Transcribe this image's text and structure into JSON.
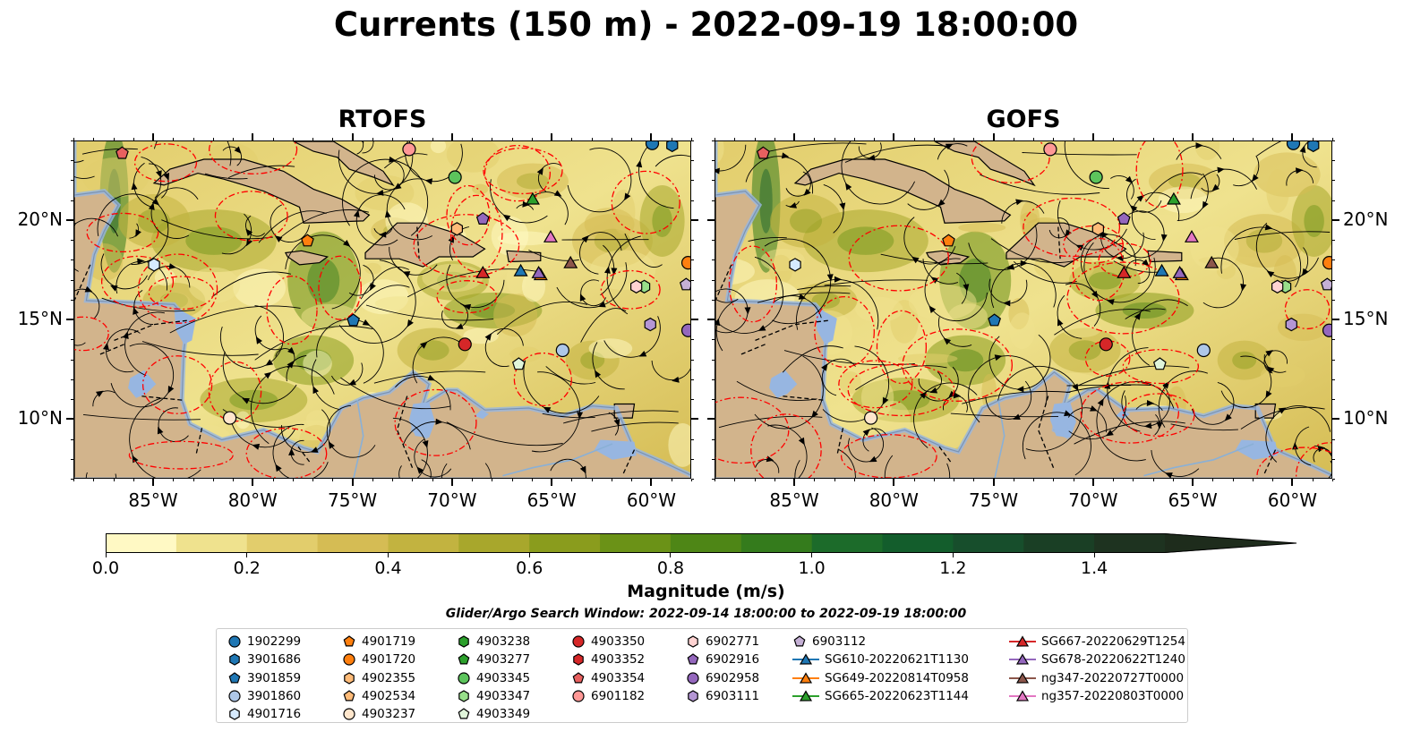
{
  "title": "Currents (150 m) - 2022-09-19 18:00:00",
  "panels": [
    {
      "id": "rtofs",
      "title": "RTOFS"
    },
    {
      "id": "gofs",
      "title": "GOFS"
    }
  ],
  "map_extent": {
    "lon": [
      -89,
      -58
    ],
    "lat": [
      7,
      24
    ]
  },
  "lon_ticks": [
    {
      "value": -85,
      "label": "85°W"
    },
    {
      "value": -80,
      "label": "80°W"
    },
    {
      "value": -75,
      "label": "75°W"
    },
    {
      "value": -70,
      "label": "70°W"
    },
    {
      "value": -65,
      "label": "65°W"
    },
    {
      "value": -60,
      "label": "60°W"
    }
  ],
  "lat_ticks": [
    {
      "value": 20,
      "label": "20°N"
    },
    {
      "value": 15,
      "label": "15°N"
    },
    {
      "value": 10,
      "label": "10°N"
    }
  ],
  "colorbar": {
    "title": "Magnitude (m/s)",
    "min": 0.0,
    "max": 1.5,
    "step": 0.1,
    "extend": "max",
    "tick_labels": [
      "0.0",
      "0.2",
      "0.4",
      "0.6",
      "0.8",
      "1.0",
      "1.2",
      "1.4"
    ],
    "tick_values": [
      0.0,
      0.2,
      0.4,
      0.6,
      0.8,
      1.0,
      1.2,
      1.4
    ],
    "colors": [
      "#fff9c4",
      "#efe28e",
      "#e2cd6c",
      "#d5bc54",
      "#c2b340",
      "#a8a72c",
      "#8a9c1d",
      "#6b9217",
      "#4e8616",
      "#347b1c",
      "#1c6b2a",
      "#135d2c",
      "#174e2c",
      "#1a3f25",
      "#1e3320",
      "#1e2c1c"
    ]
  },
  "search_window": "Glider/Argo Search Window: 2022-09-14 18:00:00 to 2022-09-19 18:00:00",
  "colors": {
    "land": "#d2b48c",
    "lakes": "#97b6e1",
    "track": "#ff0000",
    "stream": "#000000"
  },
  "legend": {
    "columns": [
      [
        {
          "label": "1902299",
          "marker": "circle",
          "color": "#1f77b4"
        },
        {
          "label": "3901686",
          "marker": "hexagon",
          "color": "#1f77b4"
        },
        {
          "label": "3901859",
          "marker": "pentagon",
          "color": "#1f77b4"
        },
        {
          "label": "3901860",
          "marker": "circle",
          "color": "#aec7e8"
        },
        {
          "label": "4901716",
          "marker": "hexagon",
          "color": "#d6eaff"
        }
      ],
      [
        {
          "label": "4901719",
          "marker": "pentagon",
          "color": "#ff7f0e"
        },
        {
          "label": "4901720",
          "marker": "circle",
          "color": "#ff7f0e"
        },
        {
          "label": "4902355",
          "marker": "hexagon",
          "color": "#ffbb78"
        },
        {
          "label": "4902534",
          "marker": "pentagon",
          "color": "#ffbb78"
        },
        {
          "label": "4903237",
          "marker": "circle",
          "color": "#ffe6cc"
        }
      ],
      [
        {
          "label": "4903238",
          "marker": "hexagon",
          "color": "#2ca02c"
        },
        {
          "label": "4903277",
          "marker": "pentagon",
          "color": "#2ca02c"
        },
        {
          "label": "4903345",
          "marker": "circle",
          "color": "#5cc45c"
        },
        {
          "label": "4903347",
          "marker": "hexagon",
          "color": "#98df8a"
        },
        {
          "label": "4903349",
          "marker": "pentagon",
          "color": "#e0f5da"
        }
      ],
      [
        {
          "label": "4903350",
          "marker": "circle",
          "color": "#d62728"
        },
        {
          "label": "4903352",
          "marker": "hexagon",
          "color": "#d62728"
        },
        {
          "label": "4903354",
          "marker": "pentagon",
          "color": "#e8605f"
        },
        {
          "label": "6901182",
          "marker": "circle",
          "color": "#ff9896"
        }
      ],
      [
        {
          "label": "6902771",
          "marker": "hexagon",
          "color": "#ffd3d2"
        },
        {
          "label": "6902916",
          "marker": "pentagon",
          "color": "#9467bd"
        },
        {
          "label": "6902958",
          "marker": "circle",
          "color": "#9467bd"
        },
        {
          "label": "6903111",
          "marker": "hexagon",
          "color": "#b496d4"
        }
      ],
      [
        {
          "label": "6903112",
          "marker": "pentagon",
          "color": "#c5b0d5"
        },
        {
          "label": "SG610-20220621T1130",
          "marker": "triangle-line",
          "color": "#1f77b4"
        },
        {
          "label": "SG649-20220814T0958",
          "marker": "triangle-line",
          "color": "#ff7f0e"
        },
        {
          "label": "SG665-20220623T1144",
          "marker": "triangle-line",
          "color": "#2ca02c"
        }
      ],
      [
        {
          "label": "SG667-20220629T1254",
          "marker": "triangle-line",
          "color": "#d62728"
        },
        {
          "label": "SG678-20220622T1240",
          "marker": "triangle-line",
          "color": "#9467bd"
        },
        {
          "label": "ng347-20220727T0000",
          "marker": "triangle-line",
          "color": "#8c564b"
        },
        {
          "label": "ng357-20220803T0000",
          "marker": "triangle-line",
          "color": "#e377c2"
        }
      ]
    ]
  },
  "platform_positions": [
    {
      "id": "1902299",
      "lon": -60.0,
      "lat": 23.9
    },
    {
      "id": "3901686",
      "lon": -59.0,
      "lat": 23.8
    },
    {
      "id": "3901859",
      "lon": -75.0,
      "lat": 15.0
    },
    {
      "id": "3901860",
      "lon": -64.5,
      "lat": 13.5
    },
    {
      "id": "4901716",
      "lon": -85.0,
      "lat": 17.8
    },
    {
      "id": "4901719",
      "lon": -77.3,
      "lat": 19.0
    },
    {
      "id": "4901720",
      "lon": -58.2,
      "lat": 17.9
    },
    {
      "id": "4902355",
      "lon": -69.8,
      "lat": 19.6
    },
    {
      "id": "4903237",
      "lon": -81.2,
      "lat": 10.1
    },
    {
      "id": "4903345",
      "lon": -69.9,
      "lat": 22.2
    },
    {
      "id": "4903347",
      "lon": -60.4,
      "lat": 16.7
    },
    {
      "id": "4903349",
      "lon": -66.7,
      "lat": 12.8
    },
    {
      "id": "4903350",
      "lon": -69.4,
      "lat": 13.8
    },
    {
      "id": "6901182",
      "lon": -72.2,
      "lat": 23.6
    },
    {
      "id": "6902771",
      "lon": -60.8,
      "lat": 16.7
    },
    {
      "id": "6902916",
      "lon": -68.5,
      "lat": 20.1
    },
    {
      "id": "6902958",
      "lon": -58.2,
      "lat": 14.5
    },
    {
      "id": "6903111",
      "lon": -60.1,
      "lat": 14.8
    },
    {
      "id": "6903112",
      "lon": -58.3,
      "lat": 16.8
    },
    {
      "id": "4903354",
      "lon": -86.6,
      "lat": 23.4
    },
    {
      "id": "SG610-20220621T1130",
      "lon": -66.6,
      "lat": 17.5
    },
    {
      "id": "SG649-20220814T0958",
      "lon": -65.6,
      "lat": 17.3
    },
    {
      "id": "SG665-20220623T1144",
      "lon": -66.0,
      "lat": 21.1
    },
    {
      "id": "SG667-20220629T1254",
      "lon": -68.5,
      "lat": 17.4
    },
    {
      "id": "SG678-20220622T1240",
      "lon": -65.7,
      "lat": 17.4
    },
    {
      "id": "ng347-20220727T0000",
      "lon": -64.1,
      "lat": 17.9
    },
    {
      "id": "ng357-20220803T0000",
      "lon": -65.1,
      "lat": 19.2
    }
  ]
}
